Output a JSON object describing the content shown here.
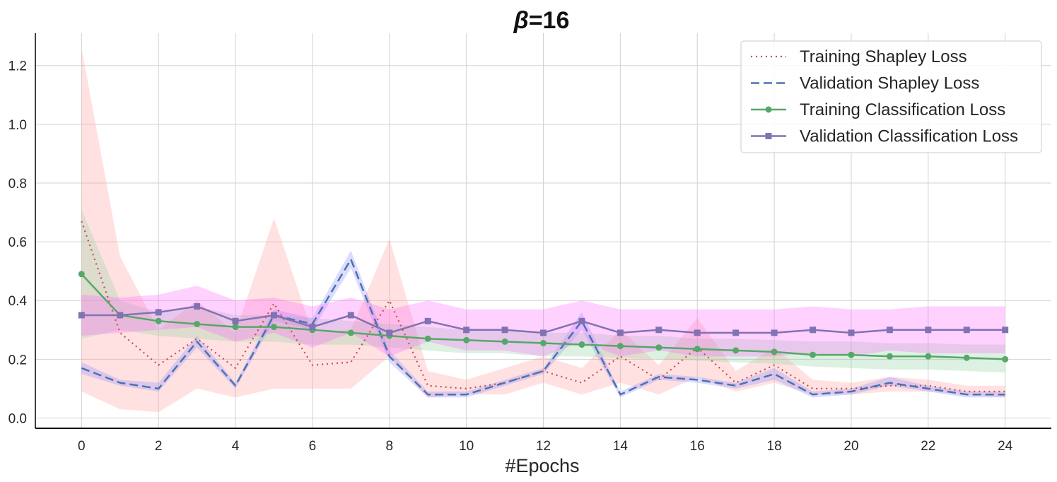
{
  "chart_data": {
    "type": "line",
    "title_symbol": "β",
    "title_rest": "=16",
    "xlabel": "#Epochs",
    "ylabel": "",
    "xlim": [
      -1.2,
      25.2
    ],
    "ylim": [
      -0.035,
      1.31
    ],
    "x_ticks": [
      0,
      2,
      4,
      6,
      8,
      10,
      12,
      14,
      16,
      18,
      20,
      22,
      24
    ],
    "y_ticks": [
      0.0,
      0.2,
      0.4,
      0.6,
      0.8,
      1.0,
      1.2
    ],
    "y_tick_labels": [
      "0.0",
      "0.2",
      "0.4",
      "0.6",
      "0.8",
      "1.0",
      "1.2"
    ],
    "grid": true,
    "legend_position": "top-right",
    "x": [
      0,
      1,
      2,
      3,
      4,
      5,
      6,
      7,
      8,
      9,
      10,
      11,
      12,
      13,
      14,
      15,
      16,
      17,
      18,
      19,
      20,
      21,
      22,
      23,
      24
    ],
    "series": [
      {
        "name": "Training Shapley Loss",
        "color": "#c44e52",
        "band_color": "#ff9a9a",
        "style": "dotted",
        "marker": "none",
        "values": [
          0.67,
          0.29,
          0.18,
          0.27,
          0.17,
          0.39,
          0.18,
          0.19,
          0.4,
          0.11,
          0.1,
          0.12,
          0.16,
          0.12,
          0.21,
          0.13,
          0.24,
          0.12,
          0.18,
          0.1,
          0.1,
          0.11,
          0.11,
          0.09,
          0.09
        ],
        "upper": [
          1.26,
          0.55,
          0.3,
          0.4,
          0.29,
          0.68,
          0.29,
          0.3,
          0.61,
          0.16,
          0.13,
          0.17,
          0.21,
          0.17,
          0.3,
          0.18,
          0.34,
          0.16,
          0.24,
          0.13,
          0.12,
          0.14,
          0.13,
          0.11,
          0.11
        ],
        "lower": [
          0.09,
          0.03,
          0.02,
          0.1,
          0.07,
          0.1,
          0.1,
          0.1,
          0.21,
          0.07,
          0.08,
          0.08,
          0.12,
          0.08,
          0.12,
          0.08,
          0.14,
          0.09,
          0.12,
          0.08,
          0.08,
          0.09,
          0.09,
          0.08,
          0.07
        ]
      },
      {
        "name": "Validation Shapley Loss",
        "color": "#4c72b0",
        "band_color": "#8c8cff",
        "style": "dashed",
        "marker": "none",
        "values": [
          0.17,
          0.12,
          0.1,
          0.26,
          0.11,
          0.35,
          0.32,
          0.54,
          0.21,
          0.08,
          0.08,
          0.12,
          0.16,
          0.33,
          0.08,
          0.14,
          0.13,
          0.11,
          0.15,
          0.08,
          0.09,
          0.12,
          0.1,
          0.08,
          0.08
        ],
        "upper": [
          0.19,
          0.13,
          0.12,
          0.28,
          0.12,
          0.37,
          0.34,
          0.57,
          0.23,
          0.09,
          0.09,
          0.13,
          0.17,
          0.36,
          0.09,
          0.15,
          0.14,
          0.12,
          0.17,
          0.09,
          0.1,
          0.14,
          0.11,
          0.09,
          0.09
        ],
        "lower": [
          0.15,
          0.11,
          0.09,
          0.24,
          0.1,
          0.33,
          0.3,
          0.51,
          0.19,
          0.07,
          0.07,
          0.11,
          0.15,
          0.3,
          0.07,
          0.13,
          0.12,
          0.1,
          0.13,
          0.07,
          0.08,
          0.11,
          0.09,
          0.07,
          0.07
        ]
      },
      {
        "name": "Training Classification Loss",
        "color": "#55a868",
        "band_color": "#8fd19e",
        "style": "solid",
        "marker": "circle",
        "values": [
          0.49,
          0.35,
          0.33,
          0.32,
          0.31,
          0.31,
          0.3,
          0.29,
          0.28,
          0.27,
          0.265,
          0.26,
          0.255,
          0.25,
          0.245,
          0.24,
          0.235,
          0.23,
          0.225,
          0.215,
          0.215,
          0.21,
          0.21,
          0.205,
          0.2
        ],
        "upper": [
          0.71,
          0.4,
          0.36,
          0.38,
          0.35,
          0.35,
          0.34,
          0.33,
          0.32,
          0.31,
          0.3,
          0.3,
          0.29,
          0.29,
          0.28,
          0.28,
          0.27,
          0.27,
          0.265,
          0.26,
          0.26,
          0.255,
          0.255,
          0.25,
          0.25
        ],
        "lower": [
          0.27,
          0.3,
          0.28,
          0.27,
          0.26,
          0.26,
          0.25,
          0.25,
          0.24,
          0.23,
          0.22,
          0.22,
          0.21,
          0.21,
          0.205,
          0.2,
          0.195,
          0.19,
          0.185,
          0.175,
          0.17,
          0.165,
          0.165,
          0.16,
          0.155
        ]
      },
      {
        "name": "Validation Classification Loss",
        "color": "#8172b2",
        "band_color": "#ff66ff",
        "style": "solid",
        "marker": "square",
        "values": [
          0.35,
          0.35,
          0.36,
          0.38,
          0.33,
          0.35,
          0.31,
          0.35,
          0.29,
          0.33,
          0.3,
          0.3,
          0.29,
          0.33,
          0.29,
          0.3,
          0.29,
          0.29,
          0.29,
          0.3,
          0.29,
          0.3,
          0.3,
          0.3,
          0.3
        ],
        "upper": [
          0.42,
          0.41,
          0.42,
          0.45,
          0.4,
          0.41,
          0.38,
          0.41,
          0.37,
          0.4,
          0.37,
          0.37,
          0.37,
          0.4,
          0.37,
          0.37,
          0.37,
          0.37,
          0.37,
          0.38,
          0.37,
          0.37,
          0.38,
          0.38,
          0.38
        ],
        "lower": [
          0.28,
          0.29,
          0.3,
          0.31,
          0.26,
          0.29,
          0.24,
          0.29,
          0.21,
          0.26,
          0.23,
          0.23,
          0.21,
          0.26,
          0.21,
          0.23,
          0.21,
          0.21,
          0.21,
          0.22,
          0.21,
          0.23,
          0.22,
          0.22,
          0.22
        ]
      }
    ]
  }
}
